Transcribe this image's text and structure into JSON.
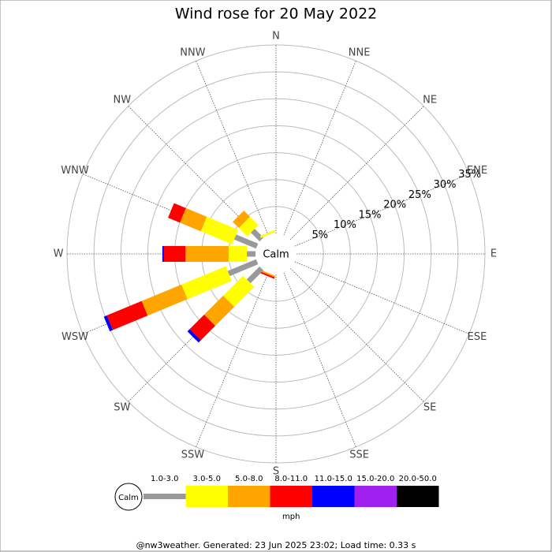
{
  "chart_data": {
    "type": "windrose",
    "title": "Wind rose for 20 May 2022",
    "directions": [
      "N",
      "NNE",
      "NE",
      "ENE",
      "E",
      "ESE",
      "SE",
      "SSE",
      "S",
      "SSW",
      "SW",
      "WSW",
      "W",
      "WNW",
      "NW",
      "NNW"
    ],
    "calm_label": "Calm",
    "rlim": [
      0,
      35
    ],
    "rticks": [
      {
        "value": 5,
        "label": "5%"
      },
      {
        "value": 10,
        "label": "10%"
      },
      {
        "value": 15,
        "label": "15%"
      },
      {
        "value": 20,
        "label": "20%"
      },
      {
        "value": 25,
        "label": "25%"
      },
      {
        "value": 30,
        "label": "30%"
      },
      {
        "value": 35,
        "label": "35%"
      }
    ],
    "series": [
      {
        "name": "1.0-3.0",
        "color": "#999999",
        "values": [
          0,
          0,
          0,
          0,
          0,
          0,
          0,
          0,
          0,
          0,
          3.4,
          5.7,
          1.6,
          4.4,
          2.3,
          0
        ]
      },
      {
        "name": "3.0-5.0",
        "color": "#ffff00",
        "values": [
          0,
          0,
          0,
          0,
          0,
          0,
          0,
          0,
          0,
          0,
          5.2,
          8.9,
          3.4,
          6.3,
          2.2,
          0.4
        ]
      },
      {
        "name": "5.0-8.0",
        "color": "#ffa500",
        "values": [
          0,
          0,
          0,
          0,
          0,
          0,
          0,
          0,
          0,
          0.3,
          5,
          8,
          8,
          4.2,
          1.6,
          0
        ]
      },
      {
        "name": "8.0-11.0",
        "color": "#ff0000",
        "values": [
          0,
          0,
          0,
          0,
          0,
          0,
          0,
          0,
          0,
          0.3,
          3.8,
          7,
          4,
          2.4,
          0,
          0
        ]
      },
      {
        "name": "11.0-15.0",
        "color": "#0000ff",
        "values": [
          0,
          0,
          0,
          0,
          0,
          0,
          0,
          0,
          0,
          0,
          0.6,
          0.6,
          0.3,
          0,
          0,
          0
        ]
      },
      {
        "name": "15.0-20.0",
        "color": "#a020f0",
        "values": [
          0,
          0,
          0,
          0,
          0,
          0,
          0,
          0,
          0,
          0,
          0,
          0,
          0,
          0,
          0,
          0
        ]
      },
      {
        "name": "20.0-50.0",
        "color": "#000000",
        "values": [
          0,
          0,
          0,
          0,
          0,
          0,
          0,
          0,
          0,
          0,
          0,
          0,
          0,
          0,
          0,
          0
        ]
      }
    ],
    "unit": "mph",
    "footer": "@nw3weather. Generated: 23 Jun 2025 23:02; Load time: 0.33 s"
  }
}
